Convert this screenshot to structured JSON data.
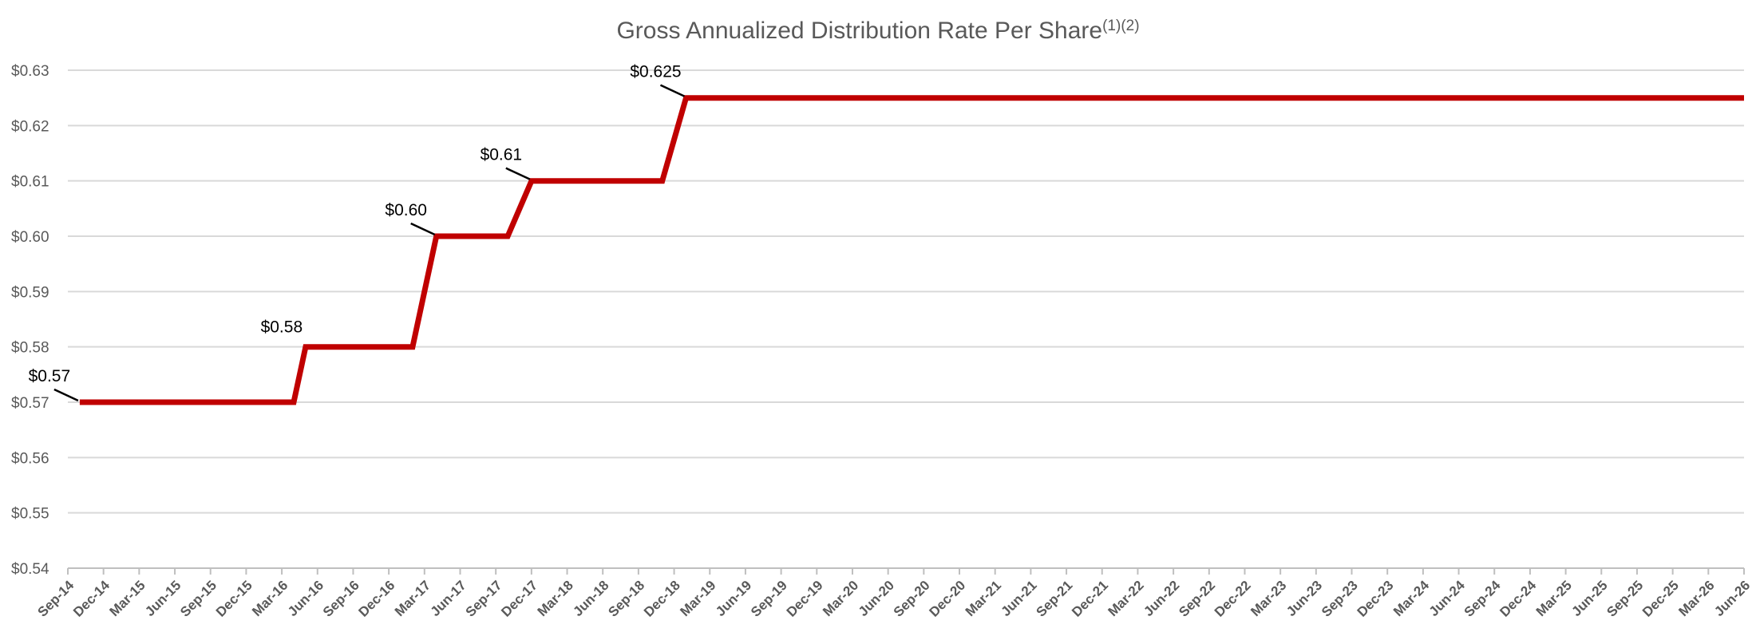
{
  "chart_data": {
    "type": "line",
    "title": "Gross Annualized Distribution Rate Per Share",
    "title_superscript": "(1)(2)",
    "ylim": [
      0.54,
      0.63
    ],
    "yticks": [
      {
        "value": 0.63,
        "label": "$0.63"
      },
      {
        "value": 0.62,
        "label": "$0.62"
      },
      {
        "value": 0.61,
        "label": "$0.61"
      },
      {
        "value": 0.6,
        "label": "$0.60"
      },
      {
        "value": 0.59,
        "label": "$0.59"
      },
      {
        "value": 0.58,
        "label": "$0.58"
      },
      {
        "value": 0.57,
        "label": "$0.57"
      },
      {
        "value": 0.56,
        "label": "$0.56"
      },
      {
        "value": 0.55,
        "label": "$0.55"
      },
      {
        "value": 0.54,
        "label": "$0.54"
      }
    ],
    "categories": [
      "Sep-14",
      "Dec-14",
      "Mar-15",
      "Jun-15",
      "Sep-15",
      "Dec-15",
      "Mar-16",
      "Jun-16",
      "Sep-16",
      "Dec-16",
      "Mar-17",
      "Jun-17",
      "Sep-17",
      "Dec-17",
      "Mar-18",
      "Jun-18",
      "Sep-18",
      "Dec-18",
      "Mar-19",
      "Jun-19",
      "Sep-19",
      "Dec-19",
      "Mar-20",
      "Jun-20",
      "Sep-20",
      "Dec-20",
      "Mar-21",
      "Jun-21",
      "Sep-21",
      "Dec-21",
      "Mar-22",
      "Jun-22",
      "Sep-22",
      "Dec-22",
      "Mar-23",
      "Jun-23",
      "Sep-23",
      "Dec-23",
      "Mar-24",
      "Jun-24",
      "Sep-24",
      "Dec-24",
      "Mar-25",
      "Jun-25",
      "Sep-25",
      "Dec-25",
      "Mar-26",
      "Jun-26"
    ],
    "series": [
      {
        "color": "#c00000",
        "points": [
          {
            "x": "Oct-14",
            "y": 0.57
          },
          {
            "x": "Apr-16",
            "y": 0.57
          },
          {
            "x": "May-16",
            "y": 0.58
          },
          {
            "x": "Feb-17",
            "y": 0.58
          },
          {
            "x": "Apr-17",
            "y": 0.6
          },
          {
            "x": "Oct-17",
            "y": 0.6
          },
          {
            "x": "Dec-17",
            "y": 0.61
          },
          {
            "x": "Nov-18",
            "y": 0.61
          },
          {
            "x": "Jan-19",
            "y": 0.625
          },
          {
            "x": "Jun-26",
            "y": 0.625
          }
        ]
      }
    ],
    "annotations": [
      {
        "label": "$0.57",
        "x": "Oct-14",
        "y": 0.57
      },
      {
        "label": "$0.58",
        "x": "May-16",
        "y": 0.58
      },
      {
        "label": "$0.60",
        "x": "Apr-17",
        "y": 0.6
      },
      {
        "label": "$0.61",
        "x": "Dec-17",
        "y": 0.61
      },
      {
        "label": "$0.625",
        "x": "Jan-19",
        "y": 0.625
      }
    ],
    "grid": true,
    "legend": "none"
  }
}
